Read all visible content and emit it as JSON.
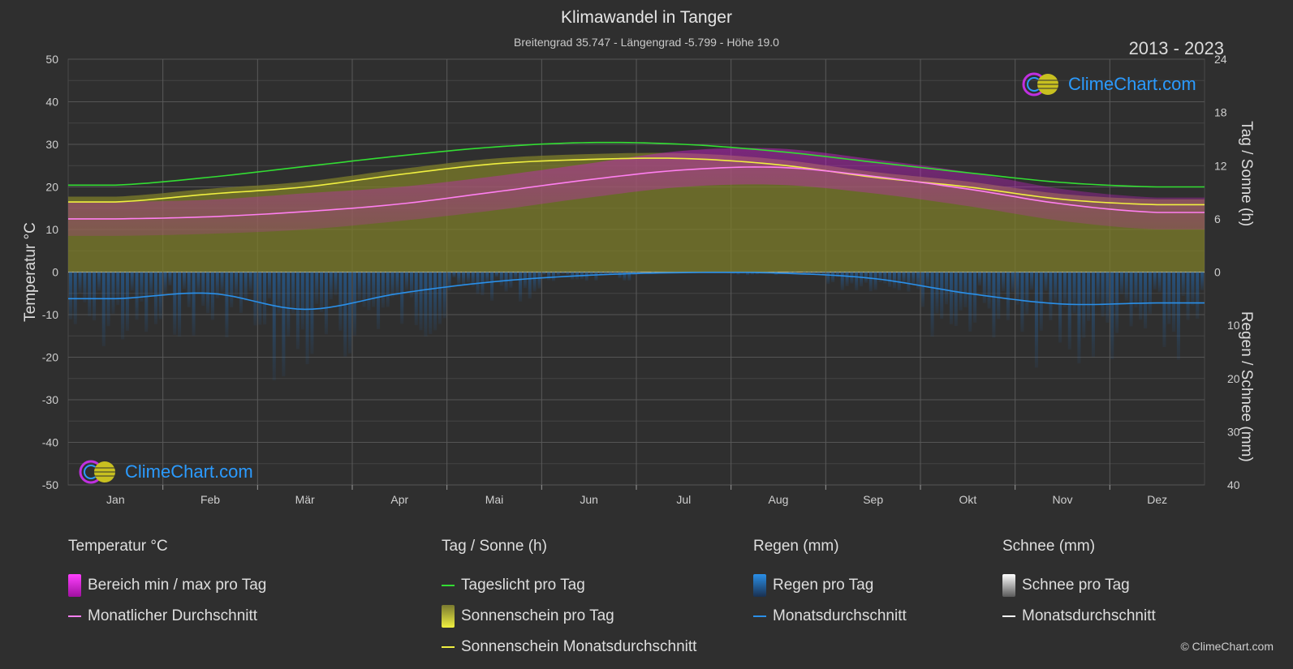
{
  "header": {
    "title": "Klimawandel in Tanger",
    "subtitle": "Breitengrad 35.747 - Längengrad -5.799 - Höhe 19.0",
    "year_range": "2013 - 2023"
  },
  "logo": {
    "text": "ClimeChart.com"
  },
  "copyright": "© ClimeChart.com",
  "legend": {
    "temperature": {
      "title": "Temperatur °C",
      "range_label": "Bereich min / max pro Tag",
      "monthly_label": "Monatlicher Durchschnitt"
    },
    "sun": {
      "title": "Tag / Sonne (h)",
      "daylight_label": "Tageslicht pro Tag",
      "sunshine_label": "Sonnenschein pro Tag",
      "sunshine_avg_label": "Sonnenschein Monatsdurchschnitt"
    },
    "rain": {
      "title": "Regen (mm)",
      "daily_label": "Regen pro Tag",
      "avg_label": "Monatsdurchschnitt"
    },
    "snow": {
      "title": "Schnee (mm)",
      "daily_label": "Schnee pro Tag",
      "avg_label": "Monatsdurchschnitt"
    }
  },
  "colors": {
    "background": "#2f2f2f",
    "temp_range": "#d21ed2",
    "temp_avg": "#ff7ff0",
    "daylight": "#33dd33",
    "sunshine_fill": "#8a8a2a",
    "sunshine_avg": "#f0f040",
    "rain": "#2080e0",
    "rain_avg": "#2a8fe8",
    "snow": "#ffffff"
  },
  "chart_data": {
    "type": "line",
    "categories": [
      "Jan",
      "Feb",
      "Mär",
      "Apr",
      "Mai",
      "Jun",
      "Jul",
      "Aug",
      "Sep",
      "Okt",
      "Nov",
      "Dez"
    ],
    "y_left": {
      "label": "Temperatur °C",
      "range": [
        -50,
        50
      ],
      "ticks": [
        50,
        40,
        30,
        20,
        10,
        0,
        -10,
        -20,
        -30,
        -40,
        -50
      ]
    },
    "y_right_top": {
      "label": "Tag / Sonne (h)",
      "range": [
        0,
        24
      ],
      "ticks": [
        24,
        18,
        12,
        6,
        0
      ]
    },
    "y_right_bottom": {
      "label": "Regen / Schnee (mm)",
      "range": [
        0,
        40
      ],
      "ticks": [
        0,
        10,
        20,
        30,
        40
      ]
    },
    "grid": true,
    "series": [
      {
        "name": "Tageslicht pro Tag",
        "axis": "sun_h",
        "values": [
          9.8,
          10.7,
          11.9,
          13.1,
          14.1,
          14.6,
          14.4,
          13.6,
          12.4,
          11.2,
          10.1,
          9.6
        ]
      },
      {
        "name": "Sonnenschein Monatsdurchschnitt",
        "axis": "sun_h",
        "values": [
          7.9,
          8.8,
          9.6,
          11.0,
          12.2,
          12.7,
          12.8,
          12.1,
          10.7,
          9.6,
          8.2,
          7.6
        ]
      },
      {
        "name": "Monatlicher Durchschnitt",
        "axis": "temp_c",
        "values": [
          12.5,
          13.0,
          14.2,
          16.0,
          18.8,
          21.7,
          24.0,
          24.6,
          22.5,
          19.5,
          16.0,
          14.0
        ]
      },
      {
        "name": "Bereich min / max pro Tag (max)",
        "axis": "temp_c",
        "values": [
          16.5,
          17.0,
          18.5,
          20.0,
          22.5,
          25.5,
          28.5,
          29.0,
          26.5,
          23.5,
          19.5,
          17.5
        ]
      },
      {
        "name": "Bereich min / max pro Tag (min)",
        "axis": "temp_c",
        "values": [
          8.5,
          9.0,
          10.0,
          12.0,
          14.5,
          17.5,
          20.0,
          20.5,
          18.5,
          15.5,
          12.0,
          10.0
        ]
      },
      {
        "name": "Regen Monatsdurchschnitt",
        "axis": "rain_mm",
        "values": [
          5.0,
          4.0,
          7.0,
          4.0,
          1.8,
          0.6,
          0.1,
          0.2,
          1.2,
          4.0,
          6.0,
          5.8
        ]
      },
      {
        "name": "Schnee Monatsdurchschnitt",
        "axis": "rain_mm",
        "values": [
          0,
          0,
          0,
          0,
          0,
          0,
          0,
          0,
          0,
          0,
          0,
          0
        ]
      }
    ]
  }
}
